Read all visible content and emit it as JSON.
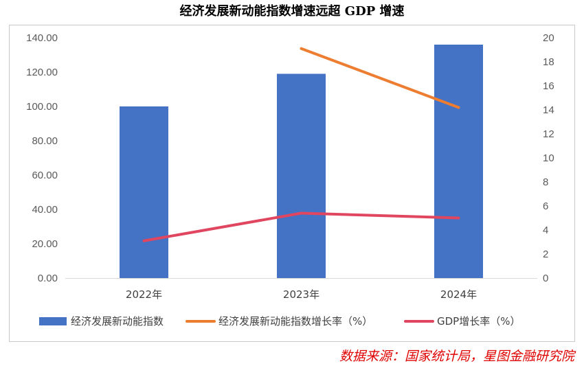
{
  "title": "经济发展新动能指数增速远超 GDP 增速",
  "source": "数据来源：国家统计局，星图金融研究院",
  "chart_data": {
    "type": "bar",
    "categories": [
      "2022年",
      "2023年",
      "2024年"
    ],
    "series": [
      {
        "name": "经济发展新动能指数",
        "type": "bar",
        "axis": "left",
        "values": [
          100,
          119,
          136
        ],
        "color": "#4472c4"
      },
      {
        "name": "经济发展新动能指数增长率（%）",
        "type": "line",
        "axis": "right",
        "values": [
          null,
          19.1,
          14.2
        ],
        "color": "#ed7d31"
      },
      {
        "name": "GDP增长率（%）",
        "type": "line",
        "axis": "right",
        "values": [
          3.1,
          5.4,
          5.0
        ],
        "color": "#e0465f"
      }
    ],
    "y_left": {
      "ylim": [
        0,
        140
      ],
      "ticks": [
        "0.00",
        "20.00",
        "40.00",
        "60.00",
        "80.00",
        "100.00",
        "120.00",
        "140.00"
      ]
    },
    "y_right": {
      "ylim": [
        0,
        20
      ],
      "ticks": [
        "0",
        "2",
        "4",
        "6",
        "8",
        "10",
        "12",
        "14",
        "16",
        "18",
        "20"
      ]
    },
    "grid": false,
    "legend": "bottom"
  }
}
